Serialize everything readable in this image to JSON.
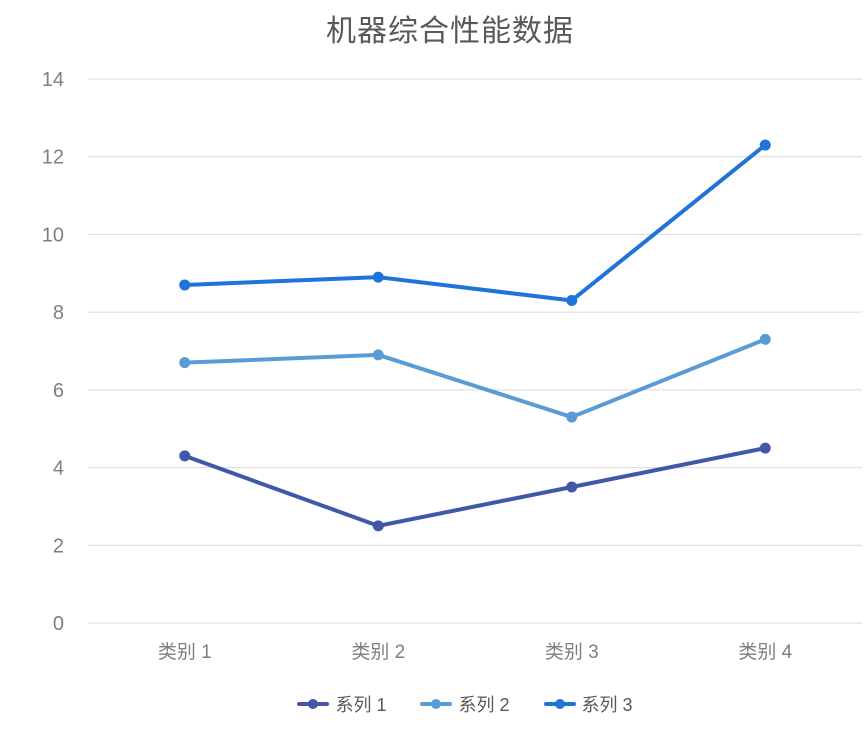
{
  "chart_data": {
    "type": "line",
    "title": "机器综合性能数据",
    "categories": [
      "类别 1",
      "类别 2",
      "类别 3",
      "类别 4"
    ],
    "series": [
      {
        "name": "系列 1",
        "values": [
          4.3,
          2.5,
          3.5,
          4.5
        ],
        "color": "#4158A8"
      },
      {
        "name": "系列 2",
        "values": [
          6.7,
          6.9,
          5.3,
          7.3
        ],
        "color": "#5B9BD5"
      },
      {
        "name": "系列 3",
        "values": [
          8.7,
          8.9,
          8.3,
          12.3
        ],
        "color": "#1E74D8"
      }
    ],
    "xlabel": "",
    "ylabel": "",
    "ylim": [
      0,
      14
    ],
    "yticks": [
      0,
      2,
      4,
      6,
      8,
      10,
      12,
      14
    ],
    "grid": true,
    "legend_position": "bottom"
  },
  "styles": {
    "background": "#ffffff",
    "title_color": "#595959",
    "tick_label_color": "#7f7f7f",
    "gridline_color": "#d9d9d9",
    "legend_text_color": "#595959"
  }
}
